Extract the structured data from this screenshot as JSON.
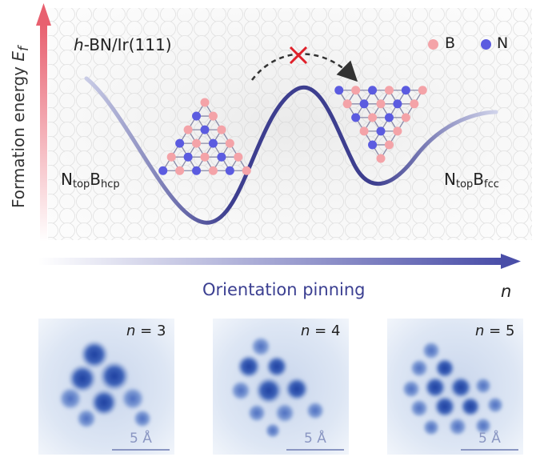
{
  "axes": {
    "y_label": "Formation energy",
    "y_symbol": "E",
    "y_subscript": "f",
    "x_label": "Orientation pinning",
    "x_symbol": "n"
  },
  "system_label_prefix": "h",
  "system_label_rest": "-BN/Ir(111)",
  "legend": {
    "b": {
      "label": "B",
      "color": "#f4a3a8"
    },
    "n": {
      "label": "N",
      "color": "#5b5be0"
    }
  },
  "states": {
    "left": {
      "main1": "N",
      "sub1": "top",
      "main2": "B",
      "sub2": "hcp"
    },
    "right": {
      "main1": "N",
      "sub1": "top",
      "main2": "B",
      "sub2": "fcc"
    }
  },
  "transition_blocked_icon": "cross-icon",
  "panels": [
    {
      "n_symbol": "n",
      "n_value": " = 3",
      "scale": "5 Å"
    },
    {
      "n_symbol": "n",
      "n_value": " = 4",
      "scale": "5 Å"
    },
    {
      "n_symbol": "n",
      "n_value": " = 5",
      "scale": "5 Å"
    }
  ],
  "colors": {
    "axis_accent": "#e05a6b",
    "curve": "#3d3e8f",
    "arrow": "#4a4ea8"
  }
}
